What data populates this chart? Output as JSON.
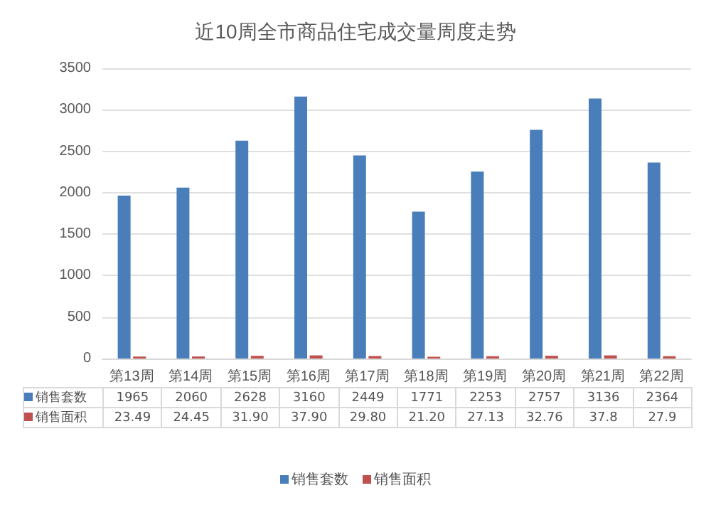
{
  "chart_data": {
    "type": "bar",
    "title": "近10周全市商品住宅成交量周度走势",
    "categories": [
      "第13周",
      "第14周",
      "第15周",
      "第16周",
      "第17周",
      "第18周",
      "第19周",
      "第20周",
      "第21周",
      "第22周"
    ],
    "series": [
      {
        "name": "销售套数",
        "color": "#4a7ebb",
        "values": [
          1965,
          2060,
          2628,
          3160,
          2449,
          1771,
          2253,
          2757,
          3136,
          2364
        ],
        "value_labels": [
          "1965",
          "2060",
          "2628",
          "3160",
          "2449",
          "1771",
          "2253",
          "2757",
          "3136",
          "2364"
        ]
      },
      {
        "name": "销售面积",
        "color": "#c0504d",
        "values": [
          23.49,
          24.45,
          31.9,
          37.9,
          29.8,
          21.2,
          27.13,
          32.76,
          37.8,
          27.9
        ],
        "value_labels": [
          "23.49",
          "24.45",
          "31.90",
          "37.90",
          "29.80",
          "21.20",
          "27.13",
          "32.76",
          "37.8",
          "27.9"
        ]
      }
    ],
    "ylim": [
      0,
      3500
    ],
    "yticks": [
      0,
      500,
      1000,
      1500,
      2000,
      2500,
      3000,
      3500
    ],
    "grid": "y",
    "legend": "bottom"
  }
}
